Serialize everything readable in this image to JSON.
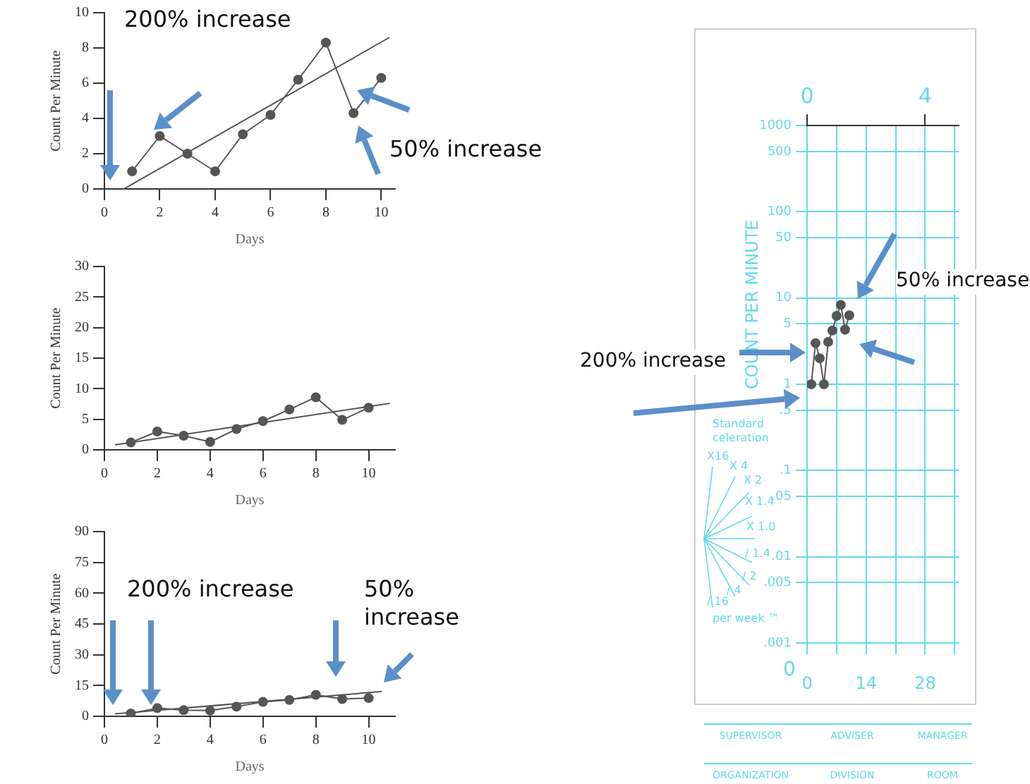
{
  "chart_data": [
    {
      "type": "line",
      "xlabel": "Days",
      "ylabel": "Count Per Minute",
      "xlim": [
        0,
        10.5
      ],
      "xticks": [
        0,
        2,
        4,
        6,
        8,
        10
      ],
      "ylim": [
        0,
        10
      ],
      "yticks": [
        0,
        2,
        4,
        6,
        8,
        10
      ],
      "grid": false,
      "marker": "circle",
      "x": [
        1,
        2,
        3,
        4,
        5,
        6,
        7,
        8,
        9,
        10
      ],
      "series": [
        {
          "color": "#555555",
          "values": [
            1,
            3,
            2,
            1,
            3.1,
            4.2,
            6.2,
            8.3,
            4.3,
            6.3
          ]
        },
        {
          "type": "line",
          "marker": "none",
          "color": "#555555",
          "x": [
            0.7,
            10.3
          ],
          "values": [
            0,
            8.6
          ]
        }
      ],
      "annotations": [
        "200% increase",
        {
          "text": "50% increase",
          "x": 9,
          "y": 4.3
        }
      ]
    },
    {
      "type": "line",
      "xlabel": "Days",
      "ylabel": "Count Per Minute",
      "xlim": [
        0,
        11
      ],
      "xticks": [
        0,
        2,
        4,
        6,
        8,
        10
      ],
      "ylim": [
        0,
        30
      ],
      "yticks": [
        0,
        5,
        10,
        15,
        20,
        25,
        30
      ],
      "grid": false,
      "marker": "circle",
      "x": [
        1,
        2,
        3,
        4,
        5,
        6,
        7,
        8,
        9,
        10
      ],
      "series": [
        {
          "color": "#555555",
          "values": [
            1.2,
            3,
            2.3,
            1.3,
            3.4,
            4.7,
            6.6,
            8.6,
            4.9,
            6.9
          ]
        },
        {
          "type": "line",
          "marker": "none",
          "color": "#555555",
          "x": [
            0.4,
            10.8
          ],
          "values": [
            0.8,
            7.6
          ]
        }
      ]
    },
    {
      "type": "line",
      "xlabel": "Days",
      "ylabel": "Count Per Minute",
      "xlim": [
        0,
        11
      ],
      "xticks": [
        0,
        2,
        4,
        6,
        8,
        10
      ],
      "ylim": [
        0,
        90
      ],
      "yticks": [
        0,
        15,
        30,
        45,
        60,
        75,
        90
      ],
      "grid": false,
      "marker": "circle",
      "x": [
        1,
        2,
        3,
        4,
        5,
        6,
        7,
        8,
        9,
        10
      ],
      "series": [
        {
          "color": "#555555",
          "values": [
            1.4,
            4,
            3,
            2.8,
            4.7,
            7,
            8,
            10.5,
            8.4,
            8.9
          ]
        },
        {
          "type": "line",
          "marker": "none",
          "color": "#555555",
          "x": [
            0.4,
            10.5
          ],
          "values": [
            1.2,
            12.1
          ]
        }
      ],
      "annotations": [
        "200% increase",
        "50% increase"
      ]
    },
    {
      "type": "line",
      "ylabel": "COUNT PER MINUTE",
      "log": "y",
      "grid": true,
      "xlim": [
        0,
        36
      ],
      "xticks": [
        0,
        {
          "value": 7,
          "label": null
        },
        14,
        {
          "value": 21,
          "label": null
        },
        28,
        {
          "value": 35,
          "label": null
        }
      ],
      "x2lim": [
        0,
        5.142857
      ],
      "x2ticks": [
        0,
        4
      ],
      "ylim": [
        0.001,
        1000
      ],
      "yticks": [
        {
          "value": 1000,
          "label": "1000"
        },
        500,
        100,
        50,
        10,
        5,
        1,
        {
          "value": 0.5,
          "label": ".5"
        },
        {
          "value": 0.1,
          "label": ".1"
        },
        {
          "value": 0.05,
          "label": ".05"
        },
        {
          "value": 0.01,
          "label": ".01"
        },
        {
          "value": 0.005,
          "label": ".005"
        },
        {
          "value": 0.001,
          "label": ".001"
        }
      ],
      "marker": "circle",
      "x": [
        1,
        2,
        3,
        4,
        5,
        6,
        7,
        8,
        9,
        10
      ],
      "series": [
        {
          "color": "#555555",
          "values": [
            1,
            3,
            2,
            1,
            3.1,
            4.2,
            6.2,
            8.3,
            4.3,
            6.3
          ]
        }
      ],
      "annotations": [
        "200% increase",
        "50% increase",
        "0",
        "Standard celeration",
        "X16",
        "X 4",
        "X 2",
        "X 1.4",
        "X 1.0",
        "/ 1.4",
        "/ 2",
        "/ 4",
        "/ 16",
        "per week ™",
        "SUPERVISOR",
        "ADVISER",
        "MANAGER",
        "ORGANIZATION",
        "DIVISION",
        "ROOM"
      ]
    }
  ]
}
